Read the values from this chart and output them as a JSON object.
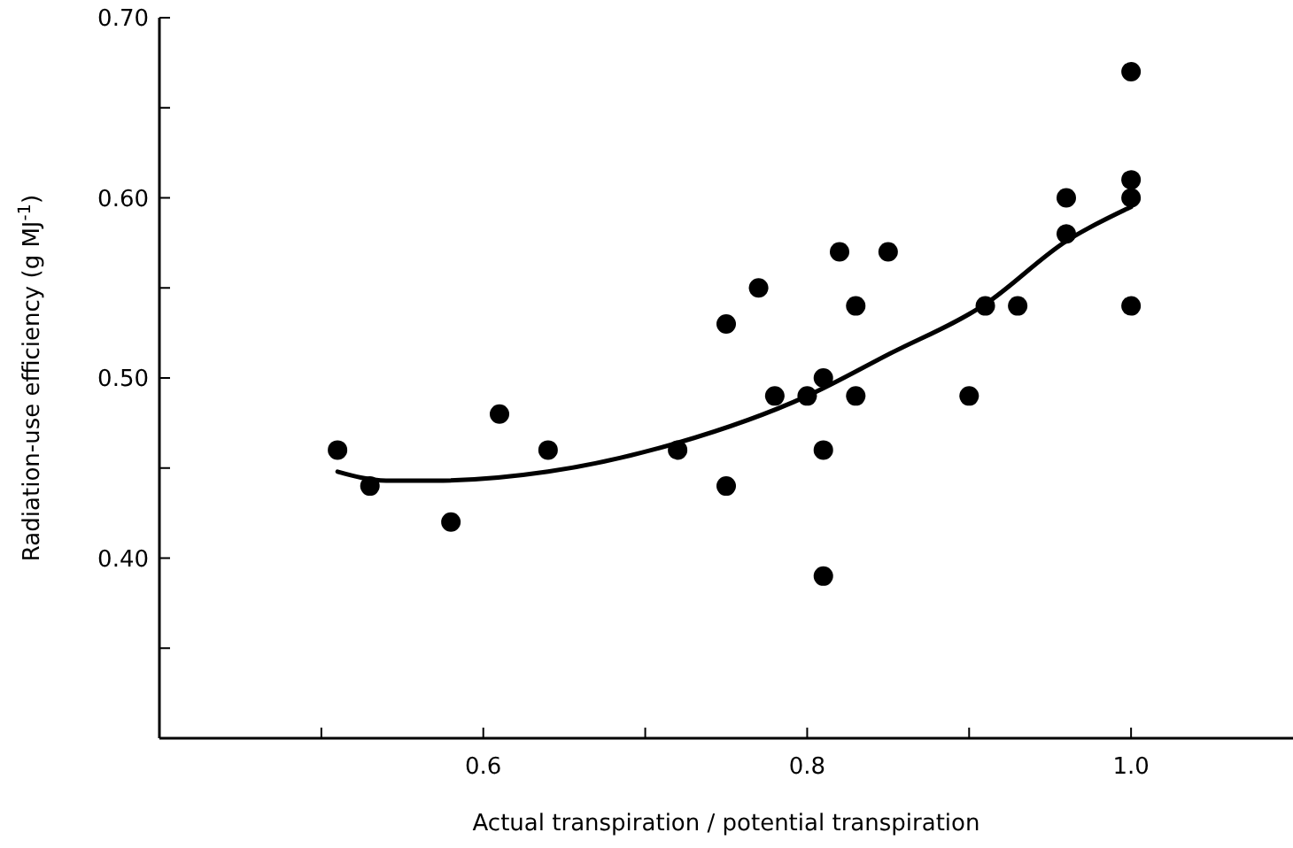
{
  "chart_data": {
    "type": "scatter",
    "xlabel": "Actual transpiration / potential transpiration",
    "ylabel": "Radiation-use efficiency (g MJ$^{-1}$)",
    "xlim": [
      0.4,
      1.1
    ],
    "ylim": [
      0.3,
      0.7
    ],
    "xticks": [
      {
        "value": 0.5,
        "label": null
      },
      0.6,
      {
        "value": 0.7,
        "label": null
      },
      0.8,
      {
        "value": 0.9,
        "label": null
      },
      {
        "value": 1.0,
        "label": "1.0"
      }
    ],
    "yticks": [
      {
        "value": 0.35,
        "label": null
      },
      {
        "value": 0.4,
        "label": "0.40"
      },
      {
        "value": 0.45,
        "label": null
      },
      {
        "value": 0.5,
        "label": "0.50"
      },
      {
        "value": 0.55,
        "label": null
      },
      {
        "value": 0.6,
        "label": "0.60"
      },
      {
        "value": 0.65,
        "label": null
      },
      {
        "value": 0.7,
        "label": "0.70"
      }
    ],
    "grid": false,
    "marker": "circle",
    "series": [
      {
        "color": "#000000",
        "x": [
          0.51,
          0.53,
          0.58,
          0.61,
          0.64,
          0.72,
          0.75,
          0.75,
          0.77,
          0.78,
          0.8,
          0.81,
          0.81,
          0.81,
          0.82,
          0.83,
          0.83,
          0.85,
          0.9,
          0.91,
          0.93,
          0.96,
          0.96,
          1.0,
          1.0,
          1.0,
          1.0
        ],
        "values": [
          0.46,
          0.44,
          0.42,
          0.48,
          0.46,
          0.46,
          0.53,
          0.44,
          0.55,
          0.49,
          0.49,
          0.5,
          0.46,
          0.39,
          0.57,
          0.54,
          0.49,
          0.57,
          0.49,
          0.54,
          0.54,
          0.6,
          0.58,
          0.67,
          0.61,
          0.6,
          0.54
        ]
      },
      {
        "type": "line",
        "color": "#000000",
        "marker": "none",
        "x": [
          0.51,
          0.54,
          0.57,
          0.64,
          0.72,
          0.8,
          0.85,
          0.91,
          0.96,
          1.0
        ],
        "values": [
          0.448,
          0.443,
          0.443,
          0.448,
          0.464,
          0.49,
          0.513,
          0.541,
          0.576,
          0.595
        ]
      }
    ]
  }
}
